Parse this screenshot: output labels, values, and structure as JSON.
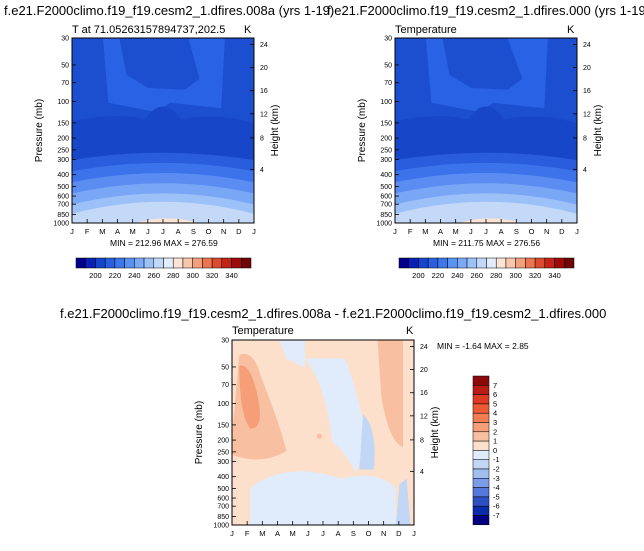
{
  "chart_data": [
    {
      "type": "heatmap",
      "title": "f.e21.F2000climo.f19_f19.cesm2_1.dfires.008a (yrs 1-19)",
      "subtitle_left": "T at 71.05263157894737,202.5",
      "subtitle_right": "K",
      "ylabel": "Pressure (mb)",
      "ylabel_right": "Height (km)",
      "x": [
        "J",
        "F",
        "M",
        "A",
        "M",
        "J",
        "J",
        "A",
        "S",
        "O",
        "N",
        "D",
        "J"
      ],
      "y_pressure": [
        "30",
        "50",
        "70",
        "100",
        "150",
        "200",
        "250",
        "300",
        "400",
        "500",
        "600",
        "700",
        "850",
        "1000"
      ],
      "y_height": [
        "24",
        "20",
        "16",
        "12",
        "8",
        "4"
      ],
      "minmax": "MIN = 212.96 MAX = 276.59",
      "colorbar_labels": [
        "200",
        "220",
        "240",
        "260",
        "280",
        "300",
        "320",
        "340"
      ],
      "colors": [
        "#00008c",
        "#0a1fb4",
        "#1644cc",
        "#2a60e0",
        "#3d78ea",
        "#5a92f2",
        "#7aaaf6",
        "#9cc2f8",
        "#c2d8f8",
        "#e2ecfa",
        "#fbe3d5",
        "#f8c6aa",
        "#f2a07c",
        "#ea7550",
        "#dc4b2e",
        "#c42418",
        "#9e0a0a",
        "#700505"
      ]
    },
    {
      "type": "heatmap",
      "title": "f.e21.F2000climo.f19_f19.cesm2_1.dfires.000 (yrs 1-19)",
      "subtitle_left": "Temperature",
      "subtitle_right": "K",
      "ylabel": "Pressure (mb)",
      "ylabel_right": "Height (km)",
      "x": [
        "J",
        "F",
        "M",
        "A",
        "M",
        "J",
        "J",
        "A",
        "S",
        "O",
        "N",
        "D",
        "J"
      ],
      "y_pressure": [
        "30",
        "50",
        "70",
        "100",
        "150",
        "200",
        "250",
        "300",
        "400",
        "500",
        "600",
        "700",
        "850",
        "1000"
      ],
      "y_height": [
        "24",
        "20",
        "16",
        "12",
        "8",
        "4"
      ],
      "minmax": "MIN = 211.75 MAX = 276.56",
      "colorbar_labels": [
        "200",
        "220",
        "240",
        "260",
        "280",
        "300",
        "320",
        "340"
      ]
    },
    {
      "type": "heatmap",
      "title": "f.e21.F2000climo.f19_f19.cesm2_1.dfires.008a - f.e21.F2000climo.f19_f19.cesm2_1.dfires.000",
      "subtitle_left": "Temperature",
      "subtitle_right": "K",
      "ylabel": "Pressure (mb)",
      "ylabel_right": "Height (km)",
      "x": [
        "J",
        "F",
        "M",
        "A",
        "M",
        "J",
        "J",
        "A",
        "S",
        "O",
        "N",
        "D",
        "J"
      ],
      "y_pressure": [
        "30",
        "50",
        "70",
        "100",
        "150",
        "200",
        "250",
        "300",
        "400",
        "500",
        "600",
        "700",
        "850",
        "1000"
      ],
      "y_height": [
        "24",
        "20",
        "16",
        "12",
        "8",
        "4"
      ],
      "minmax": "MIN =  -1.64 MAX =   2.85",
      "colorbar_labels": [
        "7",
        "6",
        "5",
        "4",
        "3",
        "2",
        "1",
        "0",
        "-1",
        "-2",
        "-3",
        "-4",
        "-5",
        "-6",
        "-7"
      ],
      "colors": [
        "#8c0a0a",
        "#b81c14",
        "#dc3a22",
        "#ee5a36",
        "#f47c52",
        "#f59e78",
        "#f8c0a0",
        "#fde0cc",
        "#e0ecfb",
        "#c2d6f6",
        "#a2bdf0",
        "#7c9cea",
        "#5478dc",
        "#2c50c4",
        "#0a2ca8",
        "#000080"
      ]
    }
  ]
}
